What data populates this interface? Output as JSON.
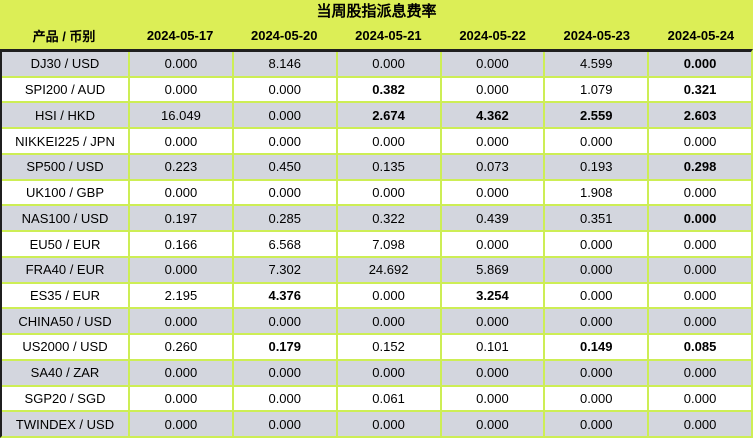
{
  "title": "当周股指派息费率",
  "colors": {
    "band": "#dcee56",
    "grid_border": "#cdee55",
    "row_gray": "#d3d6de",
    "row_white": "#ffffff",
    "frame": "#1f1f1f"
  },
  "table": {
    "header": [
      "产品 / 币别",
      "2024-05-17",
      "2024-05-20",
      "2024-05-21",
      "2024-05-22",
      "2024-05-23",
      "2024-05-24"
    ],
    "rows": [
      {
        "product": "DJ30 / USD",
        "values": [
          "0.000",
          "8.146",
          "0.000",
          "0.000",
          "4.599",
          "0.000"
        ],
        "bold": [
          false,
          false,
          false,
          false,
          false,
          true
        ]
      },
      {
        "product": "SPI200 / AUD",
        "values": [
          "0.000",
          "0.000",
          "0.382",
          "0.000",
          "1.079",
          "0.321"
        ],
        "bold": [
          false,
          false,
          true,
          false,
          false,
          true
        ]
      },
      {
        "product": "HSI / HKD",
        "values": [
          "16.049",
          "0.000",
          "2.674",
          "4.362",
          "2.559",
          "2.603"
        ],
        "bold": [
          false,
          false,
          true,
          true,
          true,
          true
        ]
      },
      {
        "product": "NIKKEI225 / JPN",
        "values": [
          "0.000",
          "0.000",
          "0.000",
          "0.000",
          "0.000",
          "0.000"
        ],
        "bold": [
          false,
          false,
          false,
          false,
          false,
          false
        ]
      },
      {
        "product": "SP500 / USD",
        "values": [
          "0.223",
          "0.450",
          "0.135",
          "0.073",
          "0.193",
          "0.298"
        ],
        "bold": [
          false,
          false,
          false,
          false,
          false,
          true
        ]
      },
      {
        "product": "UK100 / GBP",
        "values": [
          "0.000",
          "0.000",
          "0.000",
          "0.000",
          "1.908",
          "0.000"
        ],
        "bold": [
          false,
          false,
          false,
          false,
          false,
          false
        ]
      },
      {
        "product": "NAS100 / USD",
        "values": [
          "0.197",
          "0.285",
          "0.322",
          "0.439",
          "0.351",
          "0.000"
        ],
        "bold": [
          false,
          false,
          false,
          false,
          false,
          true
        ]
      },
      {
        "product": "EU50 / EUR",
        "values": [
          "0.166",
          "6.568",
          "7.098",
          "0.000",
          "0.000",
          "0.000"
        ],
        "bold": [
          false,
          false,
          false,
          false,
          false,
          false
        ]
      },
      {
        "product": "FRA40 / EUR",
        "values": [
          "0.000",
          "7.302",
          "24.692",
          "5.869",
          "0.000",
          "0.000"
        ],
        "bold": [
          false,
          false,
          false,
          false,
          false,
          false
        ]
      },
      {
        "product": "ES35 / EUR",
        "values": [
          "2.195",
          "4.376",
          "0.000",
          "3.254",
          "0.000",
          "0.000"
        ],
        "bold": [
          false,
          true,
          false,
          true,
          false,
          false
        ]
      },
      {
        "product": "CHINA50 / USD",
        "values": [
          "0.000",
          "0.000",
          "0.000",
          "0.000",
          "0.000",
          "0.000"
        ],
        "bold": [
          false,
          false,
          false,
          false,
          false,
          false
        ]
      },
      {
        "product": "US2000 / USD",
        "values": [
          "0.260",
          "0.179",
          "0.152",
          "0.101",
          "0.149",
          "0.085"
        ],
        "bold": [
          false,
          true,
          false,
          false,
          true,
          true
        ]
      },
      {
        "product": "SA40 / ZAR",
        "values": [
          "0.000",
          "0.000",
          "0.000",
          "0.000",
          "0.000",
          "0.000"
        ],
        "bold": [
          false,
          false,
          false,
          false,
          false,
          false
        ]
      },
      {
        "product": "SGP20 / SGD",
        "values": [
          "0.000",
          "0.000",
          "0.061",
          "0.000",
          "0.000",
          "0.000"
        ],
        "bold": [
          false,
          false,
          false,
          false,
          false,
          false
        ]
      },
      {
        "product": "TWINDEX / USD",
        "values": [
          "0.000",
          "0.000",
          "0.000",
          "0.000",
          "0.000",
          "0.000"
        ],
        "bold": [
          false,
          false,
          false,
          false,
          false,
          false
        ]
      }
    ]
  }
}
